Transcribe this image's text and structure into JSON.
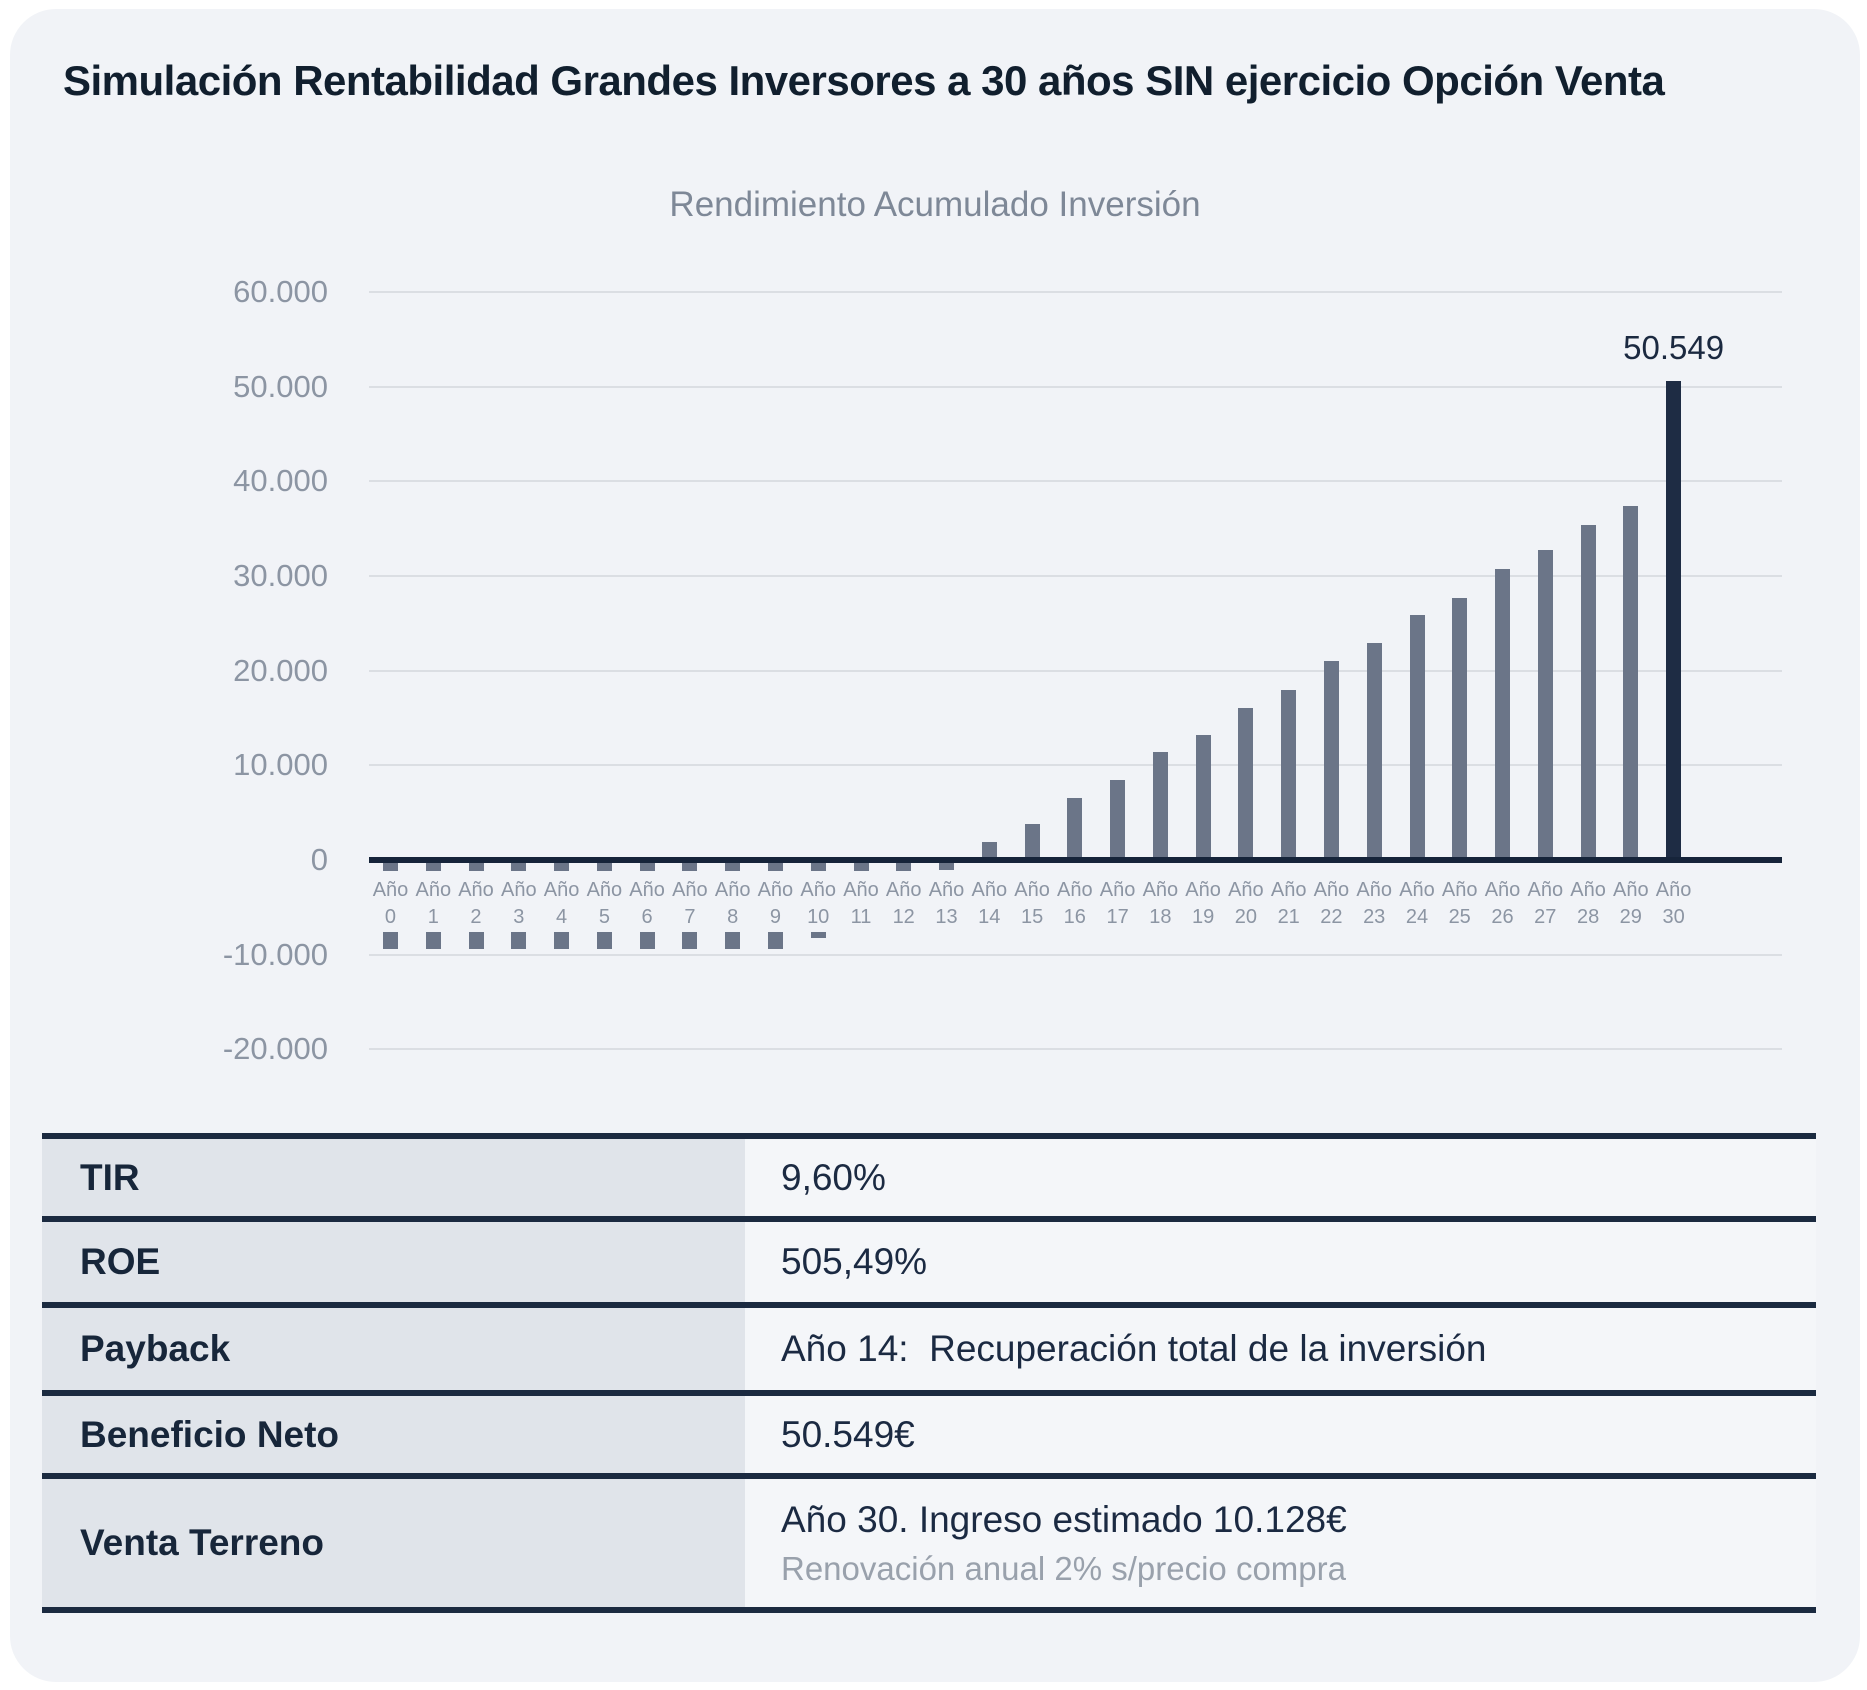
{
  "page": {
    "title": "Simulación Rentabilidad Grandes Inversores a 30 años SIN ejercicio Opción Venta"
  },
  "chart_data": {
    "type": "bar",
    "title": "Rendimiento Acumulado Inversión",
    "categories": [
      "Año 0",
      "Año 1",
      "Año 2",
      "Año 3",
      "Año 4",
      "Año 5",
      "Año 6",
      "Año 7",
      "Año 8",
      "Año 9",
      "Año 10",
      "Año 11",
      "Año 12",
      "Año 13",
      "Año 14",
      "Año 15",
      "Año 16",
      "Año 17",
      "Año 18",
      "Año 19",
      "Año 20",
      "Año 21",
      "Año 22",
      "Año 23",
      "Año 24",
      "Año 25",
      "Año 26",
      "Año 27",
      "Año 28",
      "Año 29",
      "Año 30"
    ],
    "values": [
      -9400,
      -9400,
      -9400,
      -9400,
      -9400,
      -9400,
      -9400,
      -9400,
      -9400,
      -9400,
      -8200,
      -5800,
      -3400,
      -1000,
      1900,
      3800,
      6600,
      8500,
      11400,
      13200,
      16100,
      18000,
      21000,
      22900,
      25900,
      27700,
      30700,
      32700,
      35400,
      37400,
      50549
    ],
    "ylim": [
      -20000,
      60000
    ],
    "yticks": {
      "values": [
        60000,
        50000,
        40000,
        30000,
        20000,
        10000,
        0,
        -10000,
        -20000
      ],
      "labels": [
        "60.000",
        "50.000",
        "40.000",
        "30.000",
        "20.000",
        "10.000",
        "0",
        "-10.000",
        "-20.000"
      ]
    },
    "grid": true,
    "legend": false,
    "annotation": {
      "category": "Año 30",
      "label": "50.549"
    },
    "colors": {
      "bar": "#6b7588",
      "bar_final": "#1e2c44",
      "axis": "#16243a",
      "gridline": "#dbdee3",
      "tick_label": "#8c95a3",
      "title": "#7e8897",
      "annotation": "#1b2940"
    }
  },
  "table": {
    "rows": [
      {
        "id": "tir",
        "label": "TIR",
        "value": "9,60%"
      },
      {
        "id": "roe",
        "label": "ROE",
        "value": "505,49%"
      },
      {
        "id": "payback",
        "label": "Payback",
        "value": "Año 14:  Recuperación total de la inversión"
      },
      {
        "id": "beneficio-neto",
        "label": "Beneficio Neto",
        "value": "50.549€"
      },
      {
        "id": "venta-terreno",
        "label": "Venta Terreno",
        "value": "Año 30. Ingreso estimado 10.128€",
        "sub": "Renovación anual 2% s/precio compra"
      }
    ],
    "colors": {
      "border": "#1b2a40",
      "label_bg": "#e0e4ea",
      "value_bg": "#f4f6f9",
      "label_text": "#17263a",
      "value_text": "#1b2a42",
      "sub_text": "#99a1ac"
    }
  }
}
